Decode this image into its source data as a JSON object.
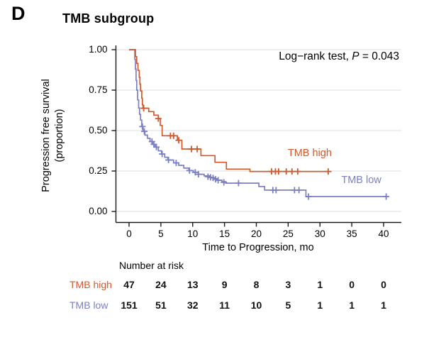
{
  "panel": {
    "label": "D",
    "title": "TMB subgroup"
  },
  "annotation": {
    "prefix": "Log−rank test, ",
    "p": "P",
    "rest": " = 0.043"
  },
  "chart_data": {
    "type": "line",
    "subtype": "kaplan-meier-step",
    "title": "TMB subgroup",
    "panel_label": "D",
    "annotation_text": "Log−rank test, P = 0.043",
    "xlabel": "Time to Progression, mo",
    "ylabel_line1": "Progression free survival",
    "ylabel_line2": "(proportion)",
    "xlim": [
      0,
      42
    ],
    "ylim": [
      0,
      1
    ],
    "grid": "horizontal-only",
    "xticks": [
      0,
      5,
      10,
      15,
      20,
      25,
      30,
      35,
      40
    ],
    "xtick_labels": [
      "0",
      "5",
      "10",
      "15",
      "20",
      "25",
      "30",
      "35",
      "40"
    ],
    "yticks": [
      0,
      0.25,
      0.5,
      0.75,
      1.0
    ],
    "ytick_labels": [
      "0.00",
      "0.25",
      "0.50",
      "0.75",
      "1.00"
    ],
    "colors": {
      "tmb_high": "#d2592b",
      "tmb_low": "#7b80c3",
      "grid": "#e3e3e3",
      "axis": "#1a1a1a"
    },
    "series": [
      {
        "name": "TMB high",
        "color": "#d2592b",
        "label_pos": [
          28.4,
          0.355
        ],
        "end": 31.4,
        "steps": [
          [
            0,
            1.0
          ],
          [
            1.0,
            0.957
          ],
          [
            1.2,
            0.915
          ],
          [
            1.4,
            0.872
          ],
          [
            1.6,
            0.83
          ],
          [
            1.7,
            0.787
          ],
          [
            1.8,
            0.745
          ],
          [
            2.0,
            0.7
          ],
          [
            2.1,
            0.66
          ],
          [
            2.2,
            0.638
          ],
          [
            3.1,
            0.617
          ],
          [
            3.9,
            0.595
          ],
          [
            4.6,
            0.574
          ],
          [
            4.9,
            0.532
          ],
          [
            5.2,
            0.468
          ],
          [
            7.6,
            0.44
          ],
          [
            8.3,
            0.386
          ],
          [
            11.3,
            0.345
          ],
          [
            13.5,
            0.304
          ],
          [
            15.3,
            0.262
          ],
          [
            19.0,
            0.247
          ]
        ],
        "censors": [
          [
            2.3,
            0.638
          ],
          [
            4.6,
            0.574
          ],
          [
            6.5,
            0.468
          ],
          [
            7.0,
            0.468
          ],
          [
            7.8,
            0.44
          ],
          [
            9.8,
            0.386
          ],
          [
            10.7,
            0.386
          ],
          [
            22.4,
            0.247
          ],
          [
            23.0,
            0.247
          ],
          [
            23.5,
            0.247
          ],
          [
            24.7,
            0.247
          ],
          [
            25.6,
            0.247
          ],
          [
            26.5,
            0.247
          ],
          [
            31.3,
            0.247
          ]
        ]
      },
      {
        "name": "TMB low",
        "color": "#7b80c3",
        "label_pos": [
          36.5,
          0.19
        ],
        "end": 40.6,
        "steps": [
          [
            0,
            1.0
          ],
          [
            0.9,
            0.94
          ],
          [
            1.0,
            0.88
          ],
          [
            1.1,
            0.81
          ],
          [
            1.2,
            0.75
          ],
          [
            1.35,
            0.69
          ],
          [
            1.5,
            0.64
          ],
          [
            1.65,
            0.6
          ],
          [
            1.8,
            0.565
          ],
          [
            2.0,
            0.525
          ],
          [
            2.2,
            0.495
          ],
          [
            2.5,
            0.472
          ],
          [
            2.9,
            0.452
          ],
          [
            3.3,
            0.432
          ],
          [
            3.7,
            0.415
          ],
          [
            4.1,
            0.398
          ],
          [
            4.6,
            0.375
          ],
          [
            5.1,
            0.355
          ],
          [
            5.6,
            0.335
          ],
          [
            6.1,
            0.318
          ],
          [
            7.0,
            0.3
          ],
          [
            7.8,
            0.285
          ],
          [
            8.6,
            0.268
          ],
          [
            9.4,
            0.253
          ],
          [
            10.1,
            0.242
          ],
          [
            10.9,
            0.23
          ],
          [
            11.8,
            0.22
          ],
          [
            12.6,
            0.211
          ],
          [
            13.3,
            0.203
          ],
          [
            13.9,
            0.193
          ],
          [
            14.6,
            0.184
          ],
          [
            15.2,
            0.175
          ],
          [
            20.4,
            0.154
          ],
          [
            21.3,
            0.132
          ],
          [
            27.8,
            0.092
          ]
        ],
        "censors": [
          [
            2.1,
            0.525
          ],
          [
            2.4,
            0.495
          ],
          [
            3.6,
            0.432
          ],
          [
            3.9,
            0.415
          ],
          [
            4.3,
            0.398
          ],
          [
            5.2,
            0.355
          ],
          [
            6.2,
            0.318
          ],
          [
            7.4,
            0.3
          ],
          [
            9.5,
            0.253
          ],
          [
            10.4,
            0.242
          ],
          [
            10.9,
            0.23
          ],
          [
            12.4,
            0.215
          ],
          [
            12.8,
            0.211
          ],
          [
            13.2,
            0.207
          ],
          [
            13.6,
            0.199
          ],
          [
            14.0,
            0.193
          ],
          [
            14.9,
            0.18
          ],
          [
            17.2,
            0.175
          ],
          [
            22.6,
            0.132
          ],
          [
            23.1,
            0.132
          ],
          [
            26.0,
            0.132
          ],
          [
            26.7,
            0.132
          ],
          [
            28.2,
            0.092
          ],
          [
            40.4,
            0.092
          ]
        ]
      }
    ],
    "risk_table": {
      "title": "Number at risk",
      "time_points": [
        0,
        5,
        10,
        15,
        20,
        25,
        30,
        35,
        40
      ],
      "rows": [
        {
          "name": "TMB high",
          "color": "#d2592b",
          "counts": [
            "47",
            "24",
            "13",
            "9",
            "8",
            "3",
            "1",
            "0",
            "0"
          ]
        },
        {
          "name": "TMB low",
          "color": "#7b80c3",
          "counts": [
            "151",
            "51",
            "32",
            "11",
            "10",
            "5",
            "1",
            "1",
            "1"
          ]
        }
      ]
    }
  }
}
